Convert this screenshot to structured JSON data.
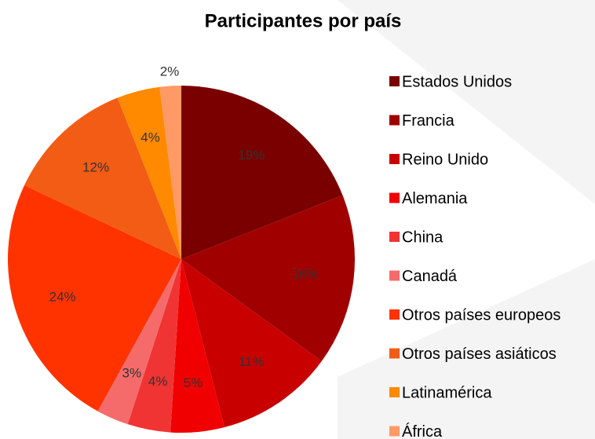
{
  "chart_data": {
    "type": "pie",
    "title": "Participantes por país",
    "categories": [
      "Estados Unidos",
      "Francia",
      "Reino Unido",
      "Alemania",
      "China",
      "Canadá",
      "Otros países europeos",
      "Otros países asiáticos",
      "Latinamérica",
      "África"
    ],
    "values": [
      19,
      16,
      11,
      5,
      4,
      3,
      24,
      12,
      4,
      2
    ],
    "value_labels": [
      "19%",
      "16%",
      "11%",
      "5%",
      "4%",
      "3%",
      "24%",
      "12%",
      "4%",
      "2%"
    ],
    "colors": [
      "#7a0000",
      "#a00000",
      "#c80000",
      "#f00000",
      "#f03434",
      "#f56b6b",
      "#ff3300",
      "#f25c14",
      "#ff8a00",
      "#ff9a66"
    ],
    "legend": "right"
  }
}
